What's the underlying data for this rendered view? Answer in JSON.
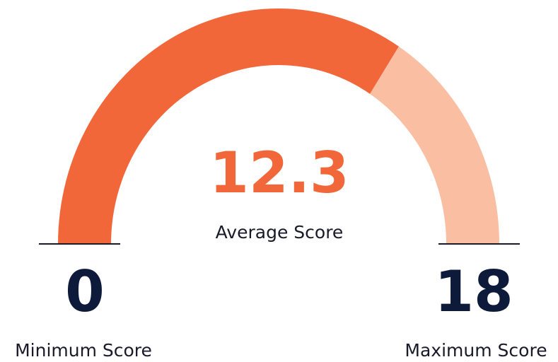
{
  "chart_data": {
    "type": "gauge",
    "value": 12.3,
    "label": "Average Score",
    "min": 0,
    "max": 18,
    "min_label": "Minimum Score",
    "max_label": "Maximum Score",
    "color": "#f26739",
    "track_color": "#fabfa2"
  }
}
